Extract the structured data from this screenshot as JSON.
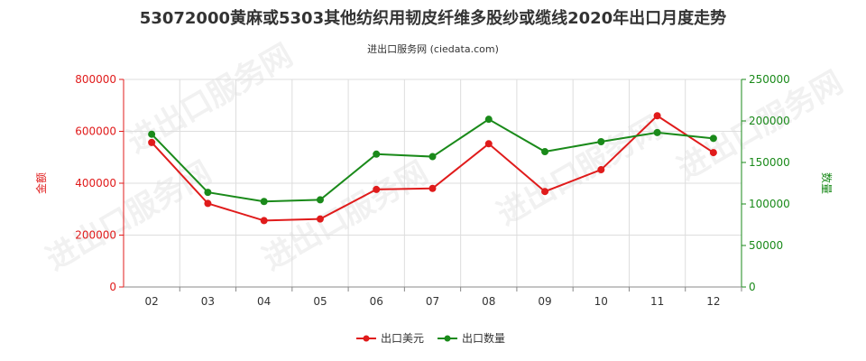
{
  "chart_data": {
    "type": "line",
    "title": "53072000黄麻或5303其他纺织用韧皮纤维多股纱或缆线2020年出口月度走势",
    "subtitle": "进出口服务网 (ciedata.com)",
    "watermark": "进出口服务网",
    "categories": [
      "02",
      "03",
      "04",
      "05",
      "06",
      "07",
      "08",
      "09",
      "10",
      "11",
      "12"
    ],
    "y_left": {
      "label": "金额",
      "ylim": [
        0,
        800000
      ],
      "ticks": [
        "0",
        "200000",
        "400000",
        "600000",
        "800000"
      ],
      "color": "#e01b1b"
    },
    "y_right": {
      "label": "数量",
      "ylim": [
        0,
        250000
      ],
      "ticks": [
        "0",
        "50000",
        "100000",
        "150000",
        "200000",
        "250000"
      ],
      "color": "#1a8a1a"
    },
    "grid": true,
    "legend_position": "bottom",
    "series": [
      {
        "name": "出口美元",
        "axis": "left",
        "color": "#e01b1b",
        "values": [
          557000,
          322000,
          256000,
          262000,
          376000,
          380000,
          552000,
          368000,
          452000,
          660000,
          518000
        ]
      },
      {
        "name": "出口数量",
        "axis": "right",
        "color": "#1a8a1a",
        "values": [
          184000,
          114000,
          103000,
          105000,
          160000,
          157000,
          202000,
          163000,
          175000,
          186000,
          179000
        ]
      }
    ]
  }
}
